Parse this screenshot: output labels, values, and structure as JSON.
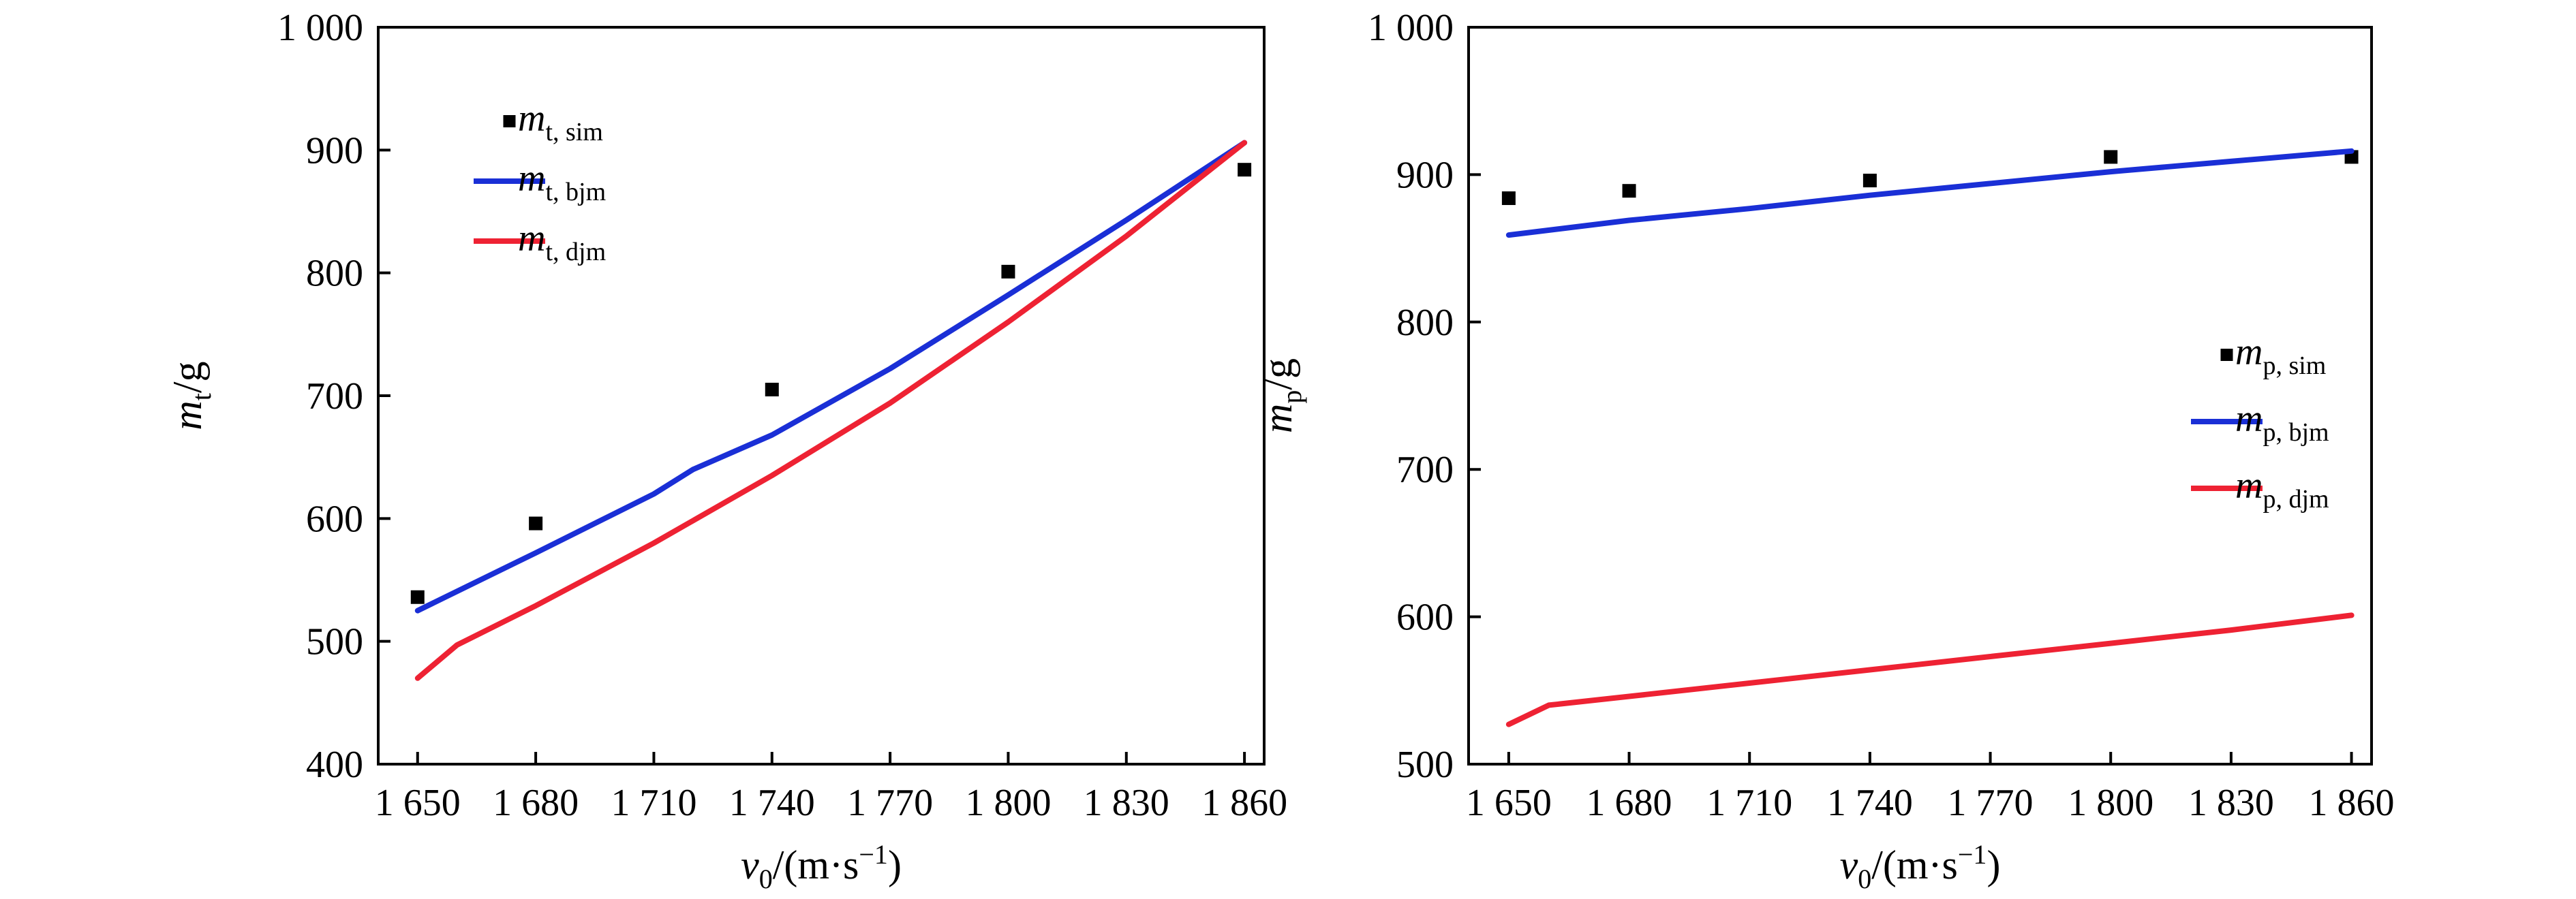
{
  "chart_data": [
    {
      "type": "line",
      "x_ticks": [
        "1 650",
        "1 680",
        "1 710",
        "1 740",
        "1 770",
        "1 800",
        "1 830",
        "1 860"
      ],
      "y_ticks": [
        "400",
        "500",
        "600",
        "700",
        "800",
        "900",
        "1 000"
      ],
      "xlim": [
        1640,
        1865
      ],
      "ylim": [
        400,
        1000
      ],
      "xlabel": {
        "main": "v",
        "sub": "0",
        "rest": "/(m·s",
        "sup": "−1",
        "close": ")"
      },
      "ylabel": {
        "main": "m",
        "sub": "t",
        "rest": "/g"
      },
      "legend_position": "top-left",
      "series": [
        {
          "label": {
            "main": "m",
            "sub": "t, sim"
          },
          "kind": "scatter",
          "color": "#000000",
          "x": [
            1650,
            1680,
            1740,
            1800,
            1860
          ],
          "y": [
            536,
            596,
            705,
            801,
            884
          ]
        },
        {
          "label": {
            "main": "m",
            "sub": "t, bjm"
          },
          "kind": "line",
          "color": "#1a2fd6",
          "x": [
            1650,
            1680,
            1710,
            1720,
            1740,
            1770,
            1800,
            1830,
            1860
          ],
          "y": [
            525,
            572,
            620,
            640,
            668,
            722,
            782,
            843,
            906
          ]
        },
        {
          "label": {
            "main": "m",
            "sub": "t, djm"
          },
          "kind": "line",
          "color": "#ee2233",
          "x": [
            1650,
            1660,
            1680,
            1710,
            1740,
            1770,
            1800,
            1830,
            1860
          ],
          "y": [
            470,
            497,
            529,
            580,
            635,
            694,
            760,
            830,
            906
          ]
        }
      ]
    },
    {
      "type": "line",
      "x_ticks": [
        "1 650",
        "1 680",
        "1 710",
        "1 740",
        "1 770",
        "1 800",
        "1 830",
        "1 860"
      ],
      "y_ticks": [
        "500",
        "600",
        "700",
        "800",
        "900",
        "1 000"
      ],
      "xlim": [
        1640,
        1865
      ],
      "ylim": [
        500,
        1000
      ],
      "xlabel": {
        "main": "v",
        "sub": "0",
        "rest": "/(m·s",
        "sup": "−1",
        "close": ")"
      },
      "ylabel": {
        "main": "m",
        "sub": "p",
        "rest": "/g"
      },
      "legend_position": "right",
      "series": [
        {
          "label": {
            "main": "m",
            "sub": "p, sim"
          },
          "kind": "scatter",
          "color": "#000000",
          "x": [
            1650,
            1680,
            1740,
            1800,
            1860
          ],
          "y": [
            884,
            889,
            896,
            912,
            912
          ]
        },
        {
          "label": {
            "main": "m",
            "sub": "p, bjm"
          },
          "kind": "line",
          "color": "#1a2fd6",
          "x": [
            1650,
            1680,
            1710,
            1740,
            1770,
            1800,
            1830,
            1860
          ],
          "y": [
            859,
            869,
            877,
            886,
            894,
            902,
            909,
            916
          ]
        },
        {
          "label": {
            "main": "m",
            "sub": "p, djm"
          },
          "kind": "line",
          "color": "#ee2233",
          "x": [
            1650,
            1660,
            1680,
            1710,
            1740,
            1770,
            1800,
            1830,
            1860
          ],
          "y": [
            527,
            540,
            546,
            555,
            564,
            573,
            582,
            591,
            601
          ]
        }
      ]
    }
  ]
}
